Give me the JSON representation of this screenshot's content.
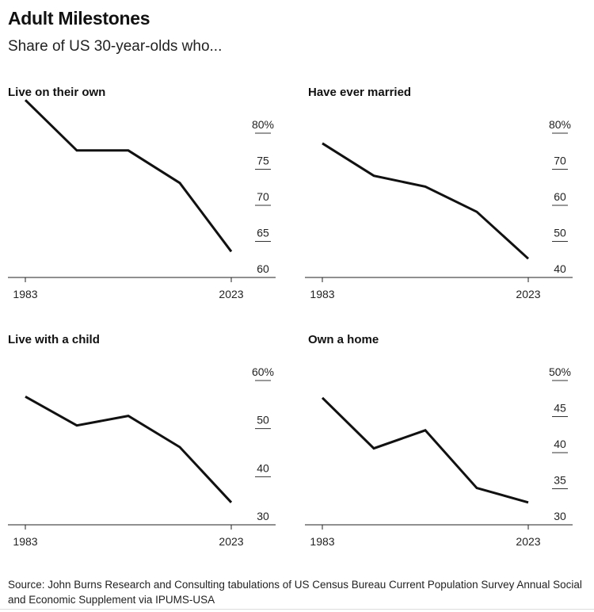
{
  "title": "Adult Milestones",
  "subtitle": "Share of US 30-year-olds who...",
  "source": "Source: John Burns Research and Consulting tabulations of US Census Bureau Current Population Survey Annual Social and Economic Supplement via IPUMS-USA",
  "chart_data": [
    {
      "type": "line",
      "title": "Live on their own",
      "x": [
        1983,
        1993,
        2003,
        2013,
        2023
      ],
      "values": [
        83.5,
        76.5,
        76.5,
        72,
        62.5
      ],
      "ylim": [
        60,
        80
      ],
      "yticks": [
        60,
        65,
        70,
        75,
        80
      ],
      "ytick_labels": [
        "60",
        "65",
        "70",
        "75",
        "80%"
      ],
      "xtick_labels": [
        "1983",
        "2023"
      ],
      "grid": false
    },
    {
      "type": "line",
      "title": "Have ever married",
      "x": [
        1983,
        1993,
        2003,
        2013,
        2023
      ],
      "values": [
        75,
        66,
        63,
        56,
        43
      ],
      "ylim": [
        40,
        80
      ],
      "yticks": [
        40,
        50,
        60,
        70,
        80
      ],
      "ytick_labels": [
        "40",
        "50",
        "60",
        "70",
        "80%"
      ],
      "xtick_labels": [
        "1983",
        "2023"
      ],
      "grid": false
    },
    {
      "type": "line",
      "title": "Live with a child",
      "x": [
        1983,
        1993,
        2003,
        2013,
        2023
      ],
      "values": [
        55,
        49,
        51,
        44.5,
        33
      ],
      "ylim": [
        30,
        60
      ],
      "yticks": [
        30,
        40,
        50,
        60
      ],
      "ytick_labels": [
        "30",
        "40",
        "50",
        "60%"
      ],
      "xtick_labels": [
        "1983",
        "2023"
      ],
      "grid": false
    },
    {
      "type": "line",
      "title": "Own a home",
      "x": [
        1983,
        1993,
        2003,
        2013,
        2023
      ],
      "values": [
        46.5,
        39.5,
        42,
        34,
        32
      ],
      "ylim": [
        30,
        50
      ],
      "yticks": [
        30,
        35,
        40,
        45,
        50
      ],
      "ytick_labels": [
        "30",
        "35",
        "40",
        "45",
        "50%"
      ],
      "xtick_labels": [
        "1983",
        "2023"
      ],
      "grid": false
    }
  ]
}
